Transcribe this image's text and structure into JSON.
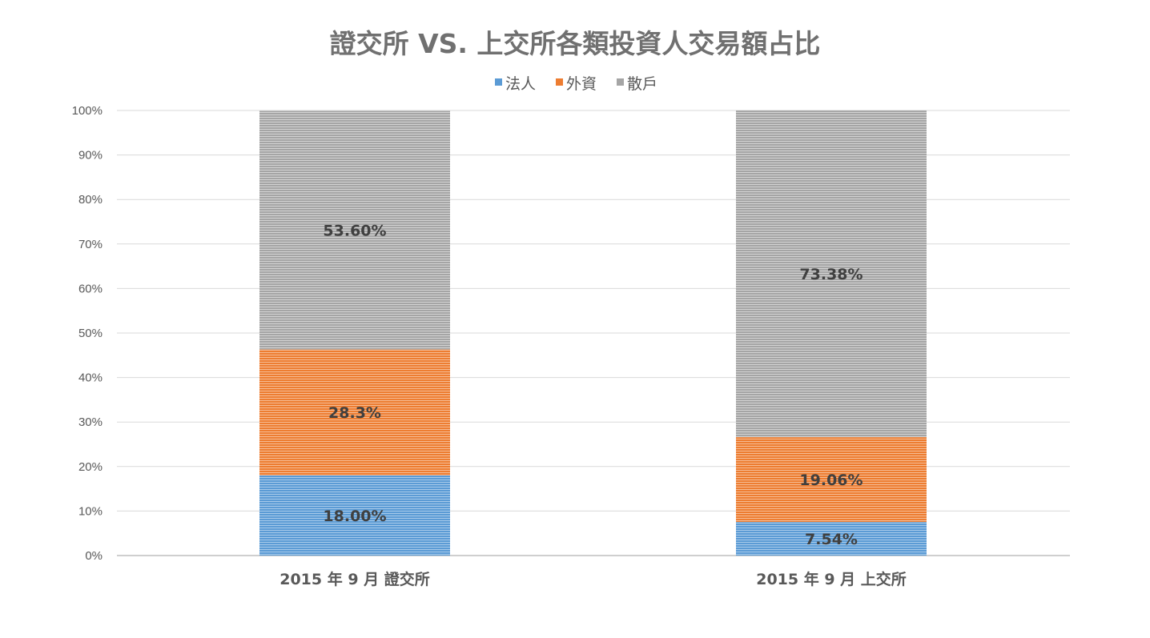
{
  "chart_data": {
    "type": "bar",
    "stacked": true,
    "percent_stacked": true,
    "title": "證交所 VS. 上交所各類投資人交易額占比",
    "xlabel": "",
    "ylabel": "",
    "categories": [
      "2015 年 9 月  證交所",
      "2015 年 9 月  上交所"
    ],
    "series": [
      {
        "name": "法人",
        "values": [
          18.0,
          7.54
        ],
        "labels": [
          "18.00%",
          "7.54%"
        ],
        "color": "#5b9bd5"
      },
      {
        "name": "外資",
        "values": [
          28.3,
          19.06
        ],
        "labels": [
          "28.3%",
          "19.06%"
        ],
        "color": "#ed7d31"
      },
      {
        "name": "散戶",
        "values": [
          53.6,
          73.38
        ],
        "labels": [
          "53.60%",
          "73.38%"
        ],
        "color": "#a5a5a5"
      }
    ],
    "yticks": [
      "0%",
      "10%",
      "20%",
      "30%",
      "40%",
      "50%",
      "60%",
      "70%",
      "80%",
      "90%",
      "100%"
    ],
    "ylim": [
      0,
      100
    ],
    "grid": true,
    "legend_position": "top"
  }
}
